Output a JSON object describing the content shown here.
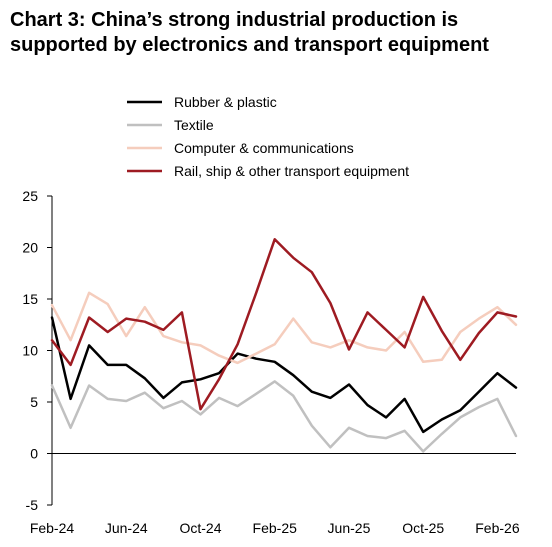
{
  "chart_data": {
    "type": "line",
    "title": "Chart 3: China’s strong industrial production is supported by electronics and transport equipment",
    "xlabel": "",
    "ylabel": "",
    "ylim": [
      -5,
      25
    ],
    "yticks": [
      "-5",
      "0",
      "5",
      "10",
      "15",
      "20",
      "25"
    ],
    "grid": false,
    "legend_position": "top",
    "x": [
      "Feb-24",
      "Mar-24",
      "Apr-24",
      "May-24",
      "Jun-24",
      "Jul-24",
      "Aug-24",
      "Sep-24",
      "Oct-24",
      "Nov-24",
      "Dec-24",
      "Jan-25",
      "Feb-25",
      "Mar-25",
      "Apr-25",
      "May-25",
      "Jun-25",
      "Jul-25",
      "Aug-25",
      "Sep-25",
      "Oct-25",
      "Nov-25",
      "Dec-25",
      "Jan-26",
      "Feb-26",
      "Mar-26"
    ],
    "xtick_labels": [
      "Feb-24",
      "Jun-24",
      "Oct-24",
      "Feb-25",
      "Jun-25",
      "Oct-25",
      "Feb-26"
    ],
    "series": [
      {
        "name": "Rubber & plastic",
        "color": "#000000",
        "values": [
          13.2,
          5.3,
          10.5,
          8.6,
          8.6,
          7.3,
          5.4,
          6.9,
          7.2,
          7.8,
          9.7,
          9.2,
          8.9,
          7.6,
          6.0,
          5.4,
          6.7,
          4.7,
          3.5,
          5.3,
          2.1,
          3.3,
          4.2,
          6.0,
          7.8,
          6.4
        ]
      },
      {
        "name": "Textile",
        "color": "#c0c0c0",
        "values": [
          6.6,
          2.5,
          6.6,
          5.3,
          5.1,
          5.9,
          4.4,
          5.1,
          3.8,
          5.4,
          4.6,
          5.8,
          7.0,
          5.6,
          2.7,
          0.6,
          2.5,
          1.7,
          1.5,
          2.2,
          0.2,
          1.9,
          3.5,
          4.5,
          5.3,
          1.7
        ]
      },
      {
        "name": "Computer & communications",
        "color": "#f5cdbd",
        "values": [
          14.4,
          11.0,
          15.6,
          14.5,
          11.4,
          14.2,
          11.4,
          10.8,
          10.5,
          9.5,
          8.8,
          9.7,
          10.6,
          13.1,
          10.8,
          10.3,
          11.0,
          10.3,
          10.0,
          11.8,
          8.9,
          9.1,
          11.8,
          13.1,
          14.2,
          12.5
        ]
      },
      {
        "name": "Rail, ship & other transport equipment",
        "color": "#9e1b22",
        "values": [
          11.0,
          8.6,
          13.2,
          11.8,
          13.1,
          12.8,
          12.0,
          13.7,
          4.3,
          7.2,
          10.6,
          15.6,
          20.8,
          19.0,
          17.6,
          14.6,
          10.1,
          13.7,
          12.0,
          10.3,
          15.2,
          11.9,
          9.1,
          11.7,
          13.7,
          13.3
        ]
      }
    ]
  }
}
